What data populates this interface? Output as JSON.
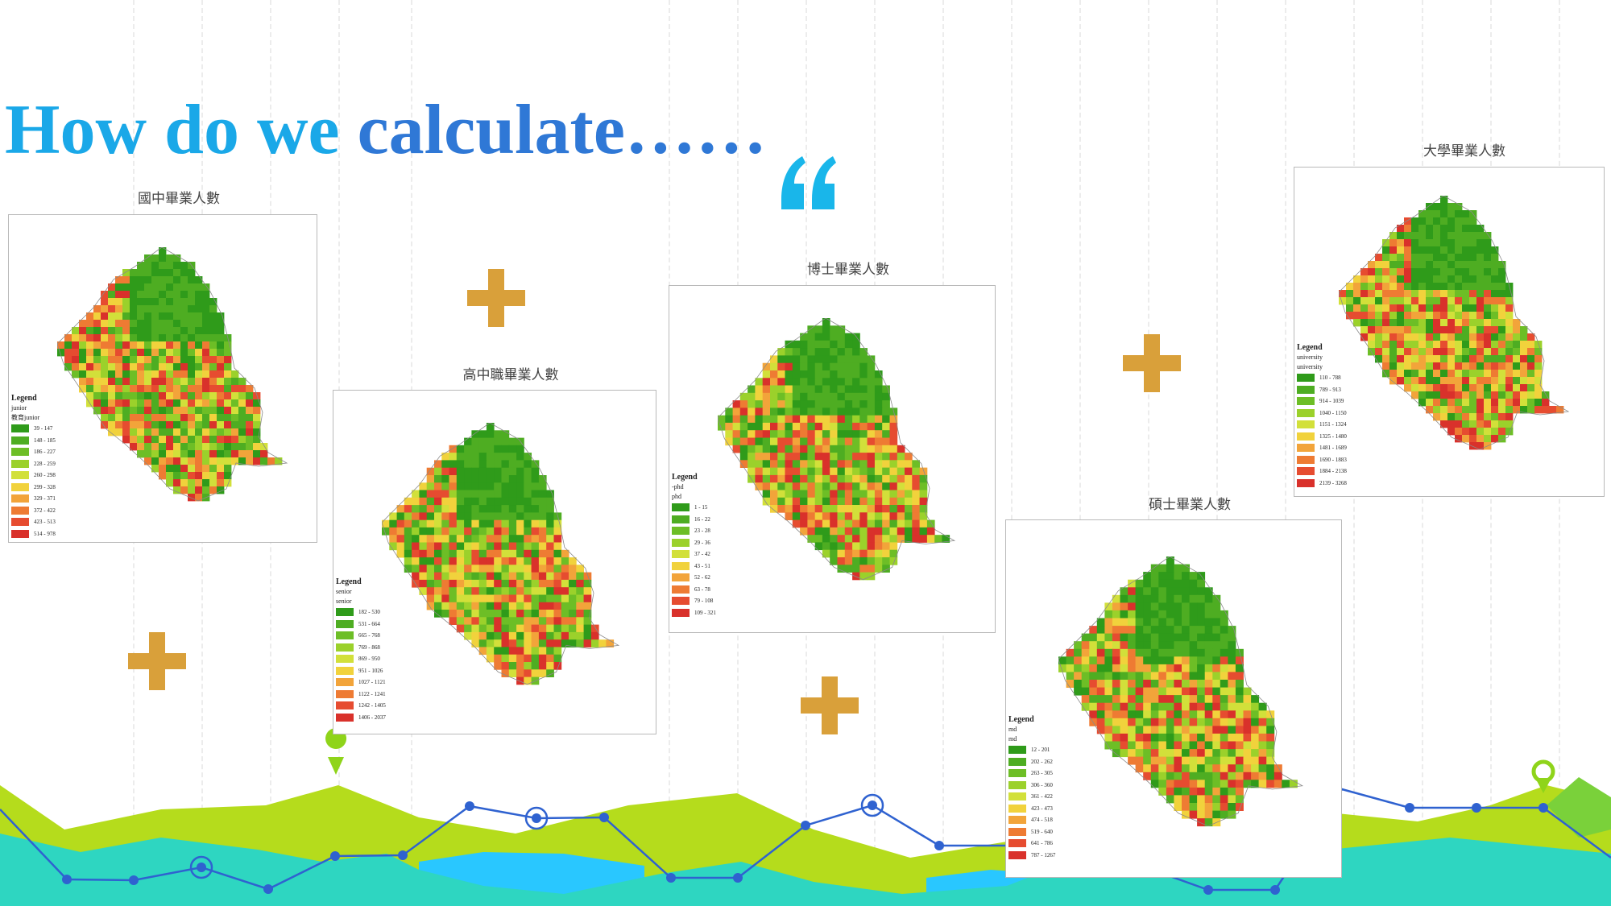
{
  "title": {
    "part1": "How do we ",
    "part2": "calculate……"
  },
  "quote_mark": {
    "color": "#19b6ea"
  },
  "plus_color": "#d9a03a",
  "colors": {
    "landscape_green": "#b5dc1c",
    "landscape_teal": "#2ed6c1",
    "landscape_cyan": "#29c7ff",
    "landscape_lime": "#7ad13a",
    "line_blue": "#2f62d0",
    "pin_green": "#8fd41a"
  },
  "ramp": [
    "#2f9b1a",
    "#4ead22",
    "#6dbe26",
    "#9bd12b",
    "#d2e03a",
    "#f1d23c",
    "#f2a43a",
    "#ee7b33",
    "#e64c30",
    "#d9312b"
  ],
  "maps": [
    {
      "title": "國中畢業人數",
      "legend_heading": "Legend",
      "legend_sub1": "junior",
      "legend_sub2": "教育junior",
      "classes": [
        "39 - 147",
        "148 - 185",
        "186 - 227",
        "228 - 259",
        "260 - 298",
        "299 - 328",
        "329 - 371",
        "372 - 422",
        "423 - 513",
        "514 - 978"
      ]
    },
    {
      "title": "高中職畢業人數",
      "legend_heading": "Legend",
      "legend_sub1": "senior",
      "legend_sub2": "senior",
      "classes": [
        "182 - 530",
        "531 - 664",
        "665 - 768",
        "769 - 868",
        "869 - 950",
        "951 - 1026",
        "1027 - 1121",
        "1122 - 1241",
        "1242 - 1405",
        "1406 - 2037"
      ]
    },
    {
      "title": "博士畢業人數",
      "legend_heading": "Legend",
      "legend_sub1": "-phd",
      "legend_sub2": "phd",
      "classes": [
        "1 - 15",
        "16 - 22",
        "23 - 28",
        "29 - 36",
        "37 - 42",
        "43 - 51",
        "52 - 62",
        "63 - 78",
        "79 - 108",
        "109 - 321"
      ]
    },
    {
      "title": "碩士畢業人數",
      "legend_heading": "Legend",
      "legend_sub1": "md",
      "legend_sub2": "md",
      "classes": [
        "12 - 201",
        "202 - 262",
        "263 - 305",
        "306 - 360",
        "361 - 422",
        "423 - 473",
        "474 - 518",
        "519 - 640",
        "641 - 786",
        "787 - 1267"
      ]
    },
    {
      "title": "大學畢業人數",
      "legend_heading": "Legend",
      "legend_sub1": "university",
      "legend_sub2": "university",
      "classes": [
        "110 - 788",
        "789 - 913",
        "914 - 1039",
        "1040 - 1150",
        "1151 - 1324",
        "1325 - 1480",
        "1481 - 1689",
        "1690 - 1883",
        "1884 - 2138",
        "2139 - 3268"
      ]
    }
  ]
}
